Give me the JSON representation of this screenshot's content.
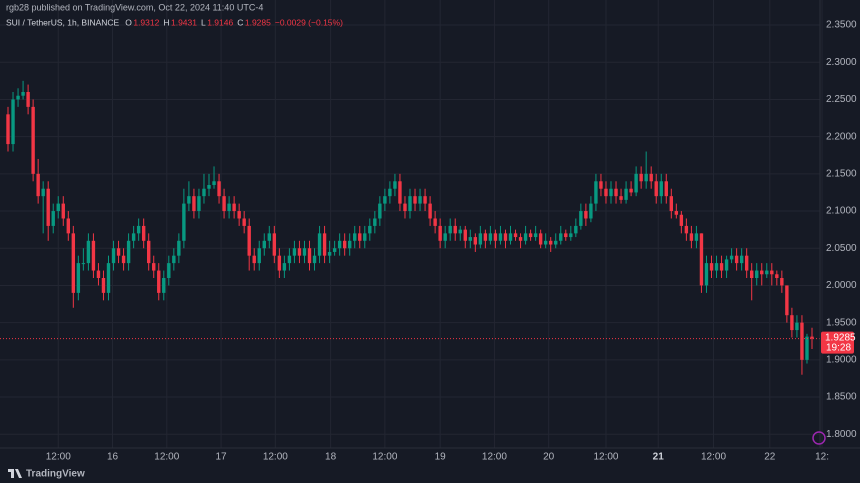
{
  "chart_data": {
    "type": "candlestick",
    "published": "rgb28 published on TradingView.com, Oct 22, 2024 11:40 UTC-4",
    "title": "SUI / TetherUS, 1h, BINANCE",
    "ohlc_header": [
      {
        "label": "O",
        "value": 1.9312
      },
      {
        "label": "H",
        "value": 1.9431
      },
      {
        "label": "L",
        "value": 1.9146
      },
      {
        "label": "C",
        "value": 1.9285
      }
    ],
    "change_text": "−0.0029 (−0.15%)",
    "up_color": "#089981",
    "down_color": "#f23645",
    "grid": true,
    "ylim": [
      1.7815,
      2.3635
    ],
    "yticks": [
      {
        "value": 1.8,
        "label": "1.8000"
      },
      {
        "value": 1.85,
        "label": "1.8500"
      },
      {
        "value": 1.9,
        "label": "1.9000"
      },
      {
        "value": 1.95,
        "label": "1.9500"
      },
      {
        "value": 2.0,
        "label": "2.0000"
      },
      {
        "value": 2.05,
        "label": "2.0500"
      },
      {
        "value": 2.1,
        "label": "2.1000"
      },
      {
        "value": 2.15,
        "label": "2.1500"
      },
      {
        "value": 2.2,
        "label": "2.2000"
      },
      {
        "value": 2.25,
        "label": "2.2500"
      },
      {
        "value": 2.3,
        "label": "2.3000"
      },
      {
        "value": 2.35,
        "label": "2.3500"
      }
    ],
    "xticks": [
      {
        "value": 10,
        "label": "12:00"
      },
      {
        "value": 20.8,
        "label": "16"
      },
      {
        "value": 31.6,
        "label": "12:00"
      },
      {
        "value": 42.4,
        "label": "17"
      },
      {
        "value": 53.2,
        "label": "12:00"
      },
      {
        "value": 64.2,
        "label": "18"
      },
      {
        "value": 75,
        "label": "12:00"
      },
      {
        "value": 86,
        "label": "19"
      },
      {
        "value": 96.8,
        "label": "12:00"
      },
      {
        "value": 107.6,
        "label": "20"
      },
      {
        "value": 119,
        "label": "12:00"
      },
      {
        "value": 129.4,
        "label": "21"
      },
      {
        "value": 140.4,
        "label": "12:00"
      },
      {
        "value": 151.6,
        "label": "22"
      },
      {
        "value": 162,
        "label": "12:"
      }
    ],
    "last_price": 1.9285,
    "countdown": "19:28",
    "footer": "TradingView",
    "ohlc": [
      [
        2.23,
        2.24,
        2.18,
        2.19
      ],
      [
        2.19,
        2.26,
        2.18,
        2.25
      ],
      [
        2.25,
        2.265,
        2.24,
        2.255
      ],
      [
        2.255,
        2.275,
        2.25,
        2.26
      ],
      [
        2.26,
        2.27,
        2.23,
        2.24
      ],
      [
        2.24,
        2.25,
        2.14,
        2.15
      ],
      [
        2.15,
        2.17,
        2.11,
        2.12
      ],
      [
        2.12,
        2.14,
        2.07,
        2.13
      ],
      [
        2.13,
        2.14,
        2.06,
        2.08
      ],
      [
        2.08,
        2.11,
        2.07,
        2.1
      ],
      [
        2.1,
        2.12,
        2.09,
        2.11
      ],
      [
        2.11,
        2.12,
        2.08,
        2.09
      ],
      [
        2.09,
        2.1,
        2.06,
        2.07
      ],
      [
        2.07,
        2.08,
        1.97,
        1.99
      ],
      [
        1.99,
        2.04,
        1.98,
        2.03
      ],
      [
        2.03,
        2.05,
        2.02,
        2.03
      ],
      [
        2.03,
        2.07,
        2.02,
        2.06
      ],
      [
        2.06,
        2.07,
        2.01,
        2.02
      ],
      [
        2.02,
        2.03,
        2.0,
        2.01
      ],
      [
        2.01,
        2.02,
        1.98,
        1.99
      ],
      [
        1.99,
        2.04,
        1.98,
        2.03
      ],
      [
        2.03,
        2.06,
        2.02,
        2.05
      ],
      [
        2.05,
        2.06,
        2.03,
        2.04
      ],
      [
        2.04,
        2.05,
        2.02,
        2.03
      ],
      [
        2.03,
        2.07,
        2.02,
        2.06
      ],
      [
        2.06,
        2.08,
        2.05,
        2.07
      ],
      [
        2.07,
        2.09,
        2.06,
        2.08
      ],
      [
        2.08,
        2.09,
        2.05,
        2.06
      ],
      [
        2.06,
        2.07,
        2.02,
        2.03
      ],
      [
        2.03,
        2.04,
        2.01,
        2.02
      ],
      [
        2.02,
        2.03,
        1.98,
        1.99
      ],
      [
        1.99,
        2.02,
        1.98,
        2.01
      ],
      [
        2.01,
        2.04,
        2.0,
        2.03
      ],
      [
        2.03,
        2.05,
        2.02,
        2.04
      ],
      [
        2.04,
        2.07,
        2.03,
        2.06
      ],
      [
        2.06,
        2.13,
        2.05,
        2.11
      ],
      [
        2.11,
        2.14,
        2.1,
        2.12
      ],
      [
        2.12,
        2.13,
        2.09,
        2.1
      ],
      [
        2.1,
        2.13,
        2.09,
        2.12
      ],
      [
        2.12,
        2.15,
        2.11,
        2.13
      ],
      [
        2.13,
        2.15,
        2.12,
        2.135
      ],
      [
        2.135,
        2.16,
        2.13,
        2.14
      ],
      [
        2.14,
        2.15,
        2.11,
        2.12
      ],
      [
        2.12,
        2.13,
        2.09,
        2.1
      ],
      [
        2.1,
        2.12,
        2.09,
        2.11
      ],
      [
        2.11,
        2.12,
        2.09,
        2.1
      ],
      [
        2.1,
        2.11,
        2.08,
        2.09
      ],
      [
        2.09,
        2.1,
        2.07,
        2.08
      ],
      [
        2.08,
        2.09,
        2.02,
        2.04
      ],
      [
        2.04,
        2.05,
        2.02,
        2.03
      ],
      [
        2.03,
        2.06,
        2.02,
        2.05
      ],
      [
        2.05,
        2.07,
        2.04,
        2.06
      ],
      [
        2.06,
        2.08,
        2.05,
        2.07
      ],
      [
        2.07,
        2.08,
        2.03,
        2.04
      ],
      [
        2.04,
        2.05,
        2.01,
        2.02
      ],
      [
        2.02,
        2.04,
        2.01,
        2.03
      ],
      [
        2.03,
        2.05,
        2.02,
        2.04
      ],
      [
        2.04,
        2.06,
        2.03,
        2.05
      ],
      [
        2.05,
        2.06,
        2.03,
        2.04
      ],
      [
        2.04,
        2.06,
        2.03,
        2.05
      ],
      [
        2.05,
        2.06,
        2.02,
        2.03
      ],
      [
        2.03,
        2.05,
        2.02,
        2.04
      ],
      [
        2.04,
        2.08,
        2.03,
        2.07
      ],
      [
        2.07,
        2.08,
        2.03,
        2.04
      ],
      [
        2.04,
        2.06,
        2.03,
        2.045
      ],
      [
        2.045,
        2.06,
        2.04,
        2.05
      ],
      [
        2.05,
        2.07,
        2.04,
        2.06
      ],
      [
        2.06,
        2.07,
        2.04,
        2.05
      ],
      [
        2.05,
        2.07,
        2.04,
        2.06
      ],
      [
        2.06,
        2.08,
        2.05,
        2.07
      ],
      [
        2.07,
        2.08,
        2.05,
        2.06
      ],
      [
        2.06,
        2.08,
        2.05,
        2.07
      ],
      [
        2.07,
        2.09,
        2.06,
        2.08
      ],
      [
        2.08,
        2.1,
        2.07,
        2.09
      ],
      [
        2.09,
        2.12,
        2.08,
        2.11
      ],
      [
        2.11,
        2.13,
        2.1,
        2.12
      ],
      [
        2.12,
        2.14,
        2.11,
        2.13
      ],
      [
        2.13,
        2.15,
        2.12,
        2.14
      ],
      [
        2.14,
        2.15,
        2.1,
        2.11
      ],
      [
        2.11,
        2.12,
        2.09,
        2.1
      ],
      [
        2.1,
        2.13,
        2.09,
        2.12
      ],
      [
        2.12,
        2.13,
        2.1,
        2.11
      ],
      [
        2.11,
        2.13,
        2.1,
        2.12
      ],
      [
        2.12,
        2.13,
        2.1,
        2.11
      ],
      [
        2.11,
        2.12,
        2.08,
        2.09
      ],
      [
        2.09,
        2.1,
        2.07,
        2.08
      ],
      [
        2.08,
        2.09,
        2.05,
        2.06
      ],
      [
        2.06,
        2.08,
        2.05,
        2.07
      ],
      [
        2.07,
        2.09,
        2.06,
        2.08
      ],
      [
        2.08,
        2.09,
        2.06,
        2.07
      ],
      [
        2.07,
        2.08,
        2.06,
        2.075
      ],
      [
        2.075,
        2.08,
        2.05,
        2.06
      ],
      [
        2.06,
        2.075,
        2.05,
        2.065
      ],
      [
        2.065,
        2.07,
        2.045,
        2.055
      ],
      [
        2.055,
        2.08,
        2.05,
        2.07
      ],
      [
        2.07,
        2.075,
        2.05,
        2.06
      ],
      [
        2.06,
        2.08,
        2.055,
        2.07
      ],
      [
        2.07,
        2.075,
        2.05,
        2.06
      ],
      [
        2.06,
        2.08,
        2.055,
        2.07
      ],
      [
        2.07,
        2.075,
        2.05,
        2.06
      ],
      [
        2.06,
        2.08,
        2.055,
        2.07
      ],
      [
        2.07,
        2.075,
        2.06,
        2.065
      ],
      [
        2.065,
        2.07,
        2.05,
        2.06
      ],
      [
        2.06,
        2.08,
        2.055,
        2.07
      ],
      [
        2.07,
        2.075,
        2.06,
        2.065
      ],
      [
        2.065,
        2.08,
        2.06,
        2.07
      ],
      [
        2.07,
        2.075,
        2.05,
        2.055
      ],
      [
        2.055,
        2.07,
        2.05,
        2.06
      ],
      [
        2.06,
        2.065,
        2.045,
        2.055
      ],
      [
        2.055,
        2.07,
        2.05,
        2.06
      ],
      [
        2.06,
        2.08,
        2.055,
        2.07
      ],
      [
        2.07,
        2.075,
        2.06,
        2.065
      ],
      [
        2.065,
        2.08,
        2.06,
        2.07
      ],
      [
        2.07,
        2.09,
        2.065,
        2.08
      ],
      [
        2.08,
        2.11,
        2.075,
        2.1
      ],
      [
        2.1,
        2.11,
        2.08,
        2.09
      ],
      [
        2.09,
        2.12,
        2.085,
        2.11
      ],
      [
        2.11,
        2.15,
        2.1,
        2.14
      ],
      [
        2.14,
        2.15,
        2.12,
        2.13
      ],
      [
        2.13,
        2.14,
        2.11,
        2.12
      ],
      [
        2.12,
        2.14,
        2.11,
        2.13
      ],
      [
        2.13,
        2.14,
        2.11,
        2.12
      ],
      [
        2.12,
        2.13,
        2.11,
        2.115
      ],
      [
        2.115,
        2.14,
        2.11,
        2.13
      ],
      [
        2.13,
        2.14,
        2.12,
        2.125
      ],
      [
        2.125,
        2.16,
        2.12,
        2.15
      ],
      [
        2.15,
        2.16,
        2.13,
        2.14
      ],
      [
        2.14,
        2.18,
        2.13,
        2.15
      ],
      [
        2.15,
        2.16,
        2.13,
        2.14
      ],
      [
        2.14,
        2.15,
        2.11,
        2.12
      ],
      [
        2.12,
        2.15,
        2.11,
        2.14
      ],
      [
        2.14,
        2.15,
        2.11,
        2.12
      ],
      [
        2.12,
        2.13,
        2.09,
        2.1
      ],
      [
        2.1,
        2.11,
        2.09,
        2.095
      ],
      [
        2.095,
        2.1,
        2.07,
        2.08
      ],
      [
        2.08,
        2.09,
        2.06,
        2.07
      ],
      [
        2.07,
        2.08,
        2.05,
        2.06
      ],
      [
        2.06,
        2.08,
        2.05,
        2.07
      ],
      [
        2.07,
        2.07,
        1.99,
        2.0
      ],
      [
        2.0,
        2.04,
        1.99,
        2.03
      ],
      [
        2.03,
        2.04,
        2.01,
        2.02
      ],
      [
        2.02,
        2.04,
        2.01,
        2.03
      ],
      [
        2.03,
        2.04,
        2.01,
        2.02
      ],
      [
        2.02,
        2.04,
        2.01,
        2.035
      ],
      [
        2.035,
        2.05,
        2.03,
        2.04
      ],
      [
        2.04,
        2.05,
        2.02,
        2.03
      ],
      [
        2.03,
        2.05,
        2.02,
        2.04
      ],
      [
        2.04,
        2.05,
        2.01,
        2.02
      ],
      [
        2.02,
        2.03,
        1.98,
        2.01
      ],
      [
        2.01,
        2.03,
        2.0,
        2.02
      ],
      [
        2.02,
        2.03,
        2.0,
        2.015
      ],
      [
        2.015,
        2.03,
        2.01,
        2.02
      ],
      [
        2.02,
        2.03,
        2.0,
        2.015
      ],
      [
        2.015,
        2.02,
        2.0,
        2.01
      ],
      [
        2.01,
        2.02,
        1.99,
        2.0
      ],
      [
        2.0,
        2.0,
        1.95,
        1.96
      ],
      [
        1.96,
        1.97,
        1.93,
        1.94
      ],
      [
        1.94,
        1.96,
        1.93,
        1.95
      ],
      [
        1.95,
        1.96,
        1.88,
        1.9
      ],
      [
        1.9,
        1.935,
        1.895,
        1.9312
      ],
      [
        1.9312,
        1.9431,
        1.9146,
        1.9285
      ]
    ]
  }
}
